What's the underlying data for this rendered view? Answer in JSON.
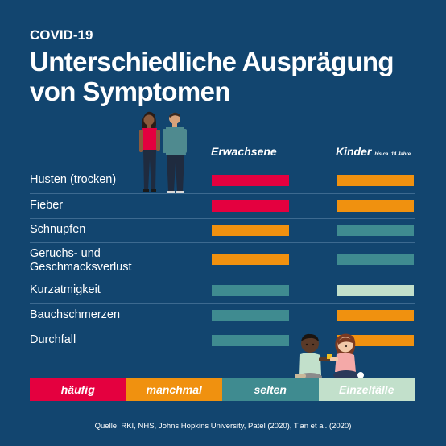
{
  "kicker": "COVID-19",
  "title_line1": "Unterschiedliche Ausprägung",
  "title_line2": "von Symptomen",
  "columns": {
    "adults": "Erwachsene",
    "children": "Kinder",
    "children_note": "bis ca. 14 Jahre"
  },
  "rows": [
    {
      "label": "Husten (trocken)",
      "adults": "häufig",
      "children": "manchmal"
    },
    {
      "label": "Fieber",
      "adults": "häufig",
      "children": "manchmal"
    },
    {
      "label": "Schnupfen",
      "adults": "manchmal",
      "children": "selten"
    },
    {
      "label": "Geruchs- und Geschmacksverlust",
      "adults": "manchmal",
      "children": "selten"
    },
    {
      "label": "Kurzatmigkeit",
      "adults": "selten",
      "children": "Einzelfälle"
    },
    {
      "label": "Bauchschmerzen",
      "adults": "selten",
      "children": "manchmal"
    },
    {
      "label": "Durchfall",
      "adults": "selten",
      "children": "manchmal"
    }
  ],
  "legend": [
    {
      "label": "häufig",
      "color": "#e4003f",
      "text_color": "#ffffff"
    },
    {
      "label": "manchmal",
      "color": "#f0910f",
      "text_color": "#ffffff"
    },
    {
      "label": "selten",
      "color": "#3f8b90",
      "text_color": "#ffffff"
    },
    {
      "label": "Einzelfälle",
      "color": "#c2e0cb",
      "text_color": "#ffffff"
    }
  ],
  "source": "Quelle: RKI, NHS, Johns Hopkins University, Patel (2020), Tian et al. (2020)",
  "illustrations": {
    "adults": "adult-couple-icon",
    "children": "children-playing-icon"
  }
}
